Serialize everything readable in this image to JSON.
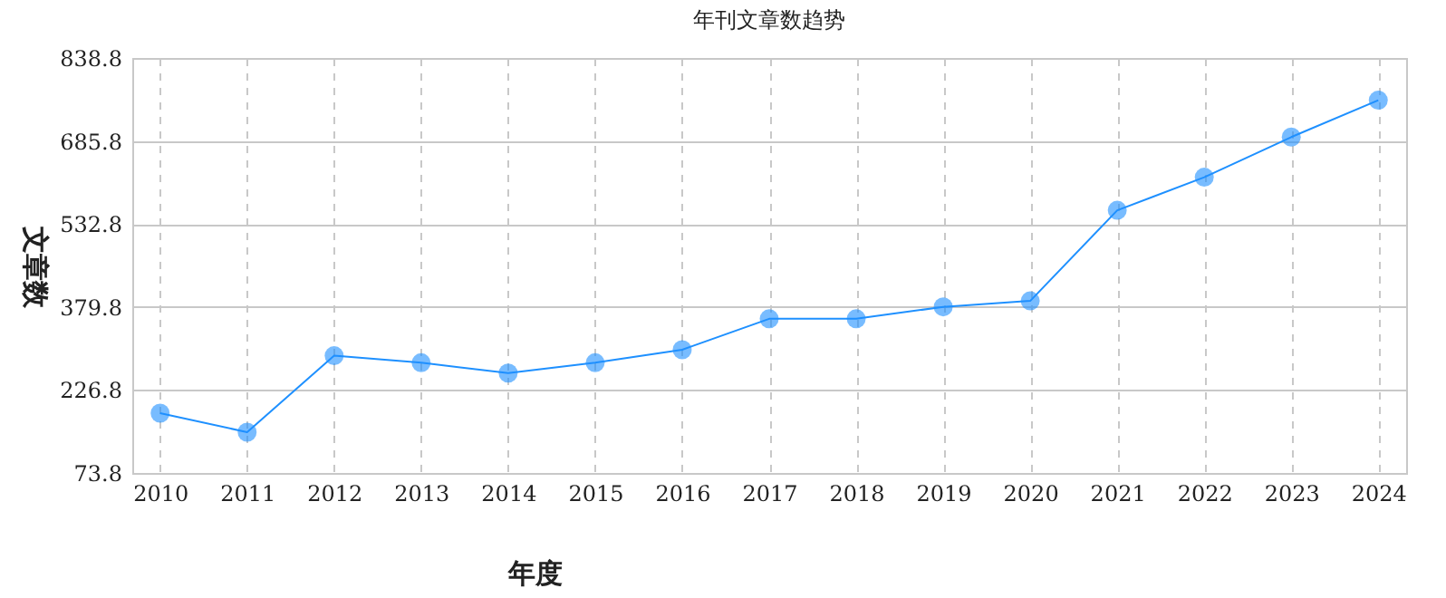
{
  "chart_data": {
    "type": "line",
    "title": "年刊文章数趋势",
    "xlabel": "年度",
    "ylabel": "文章数",
    "categories": [
      "2010",
      "2011",
      "2012",
      "2013",
      "2014",
      "2015",
      "2016",
      "2017",
      "2018",
      "2019",
      "2020",
      "2021",
      "2022",
      "2023",
      "2024"
    ],
    "series": [
      {
        "color": "#1e90ff",
        "values": [
          184,
          149,
          290,
          277,
          258,
          277,
          301,
          358,
          358,
          380,
          391,
          558,
          619,
          693,
          761
        ]
      }
    ],
    "ylim": [
      73.8,
      838.8
    ],
    "yticks": [
      73.8,
      226.8,
      379.8,
      532.8,
      685.8,
      838.8
    ],
    "grid": true,
    "marker": "circle"
  }
}
